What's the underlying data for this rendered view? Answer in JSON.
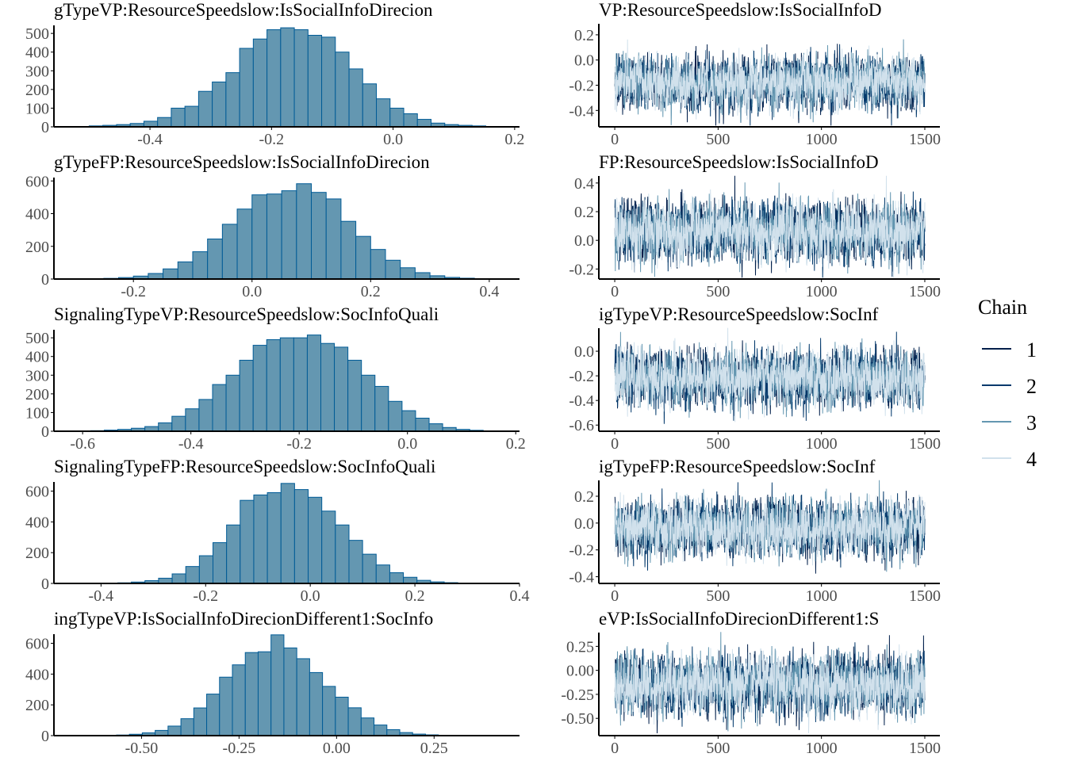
{
  "chart_data": {
    "type": "bar",
    "layout": "mcmc_combo histogram + trace",
    "legend": {
      "title": "Chain",
      "placement": "right",
      "items": [
        "1",
        "2",
        "3",
        "4"
      ]
    },
    "colors": {
      "hist_fill": "#6497b1",
      "hist_edge": "#005b96",
      "chains": [
        "#011f4b",
        "#03396c",
        "#6497b1",
        "#d1e1ec"
      ],
      "axis": "#000000",
      "tick_text": "#4d4d4d"
    },
    "panels": [
      {
        "hist": {
          "title": "gTypeVP:ResourceSpeedslow:IsSocialInfoDirecion",
          "xlim": [
            -0.558,
            0.208
          ],
          "xticks": [
            "-0.4",
            "-0.2",
            "0.0",
            "0.2"
          ],
          "xtick_values": [
            -0.4,
            -0.2,
            0.0,
            0.2
          ],
          "yticks": [
            0,
            100,
            200,
            300,
            400,
            500
          ],
          "ymax": 560,
          "bin_start": -0.5,
          "bin_width": 0.0225,
          "counts": [
            5,
            8,
            12,
            18,
            30,
            50,
            100,
            110,
            190,
            240,
            290,
            420,
            470,
            520,
            530,
            520,
            490,
            480,
            400,
            310,
            230,
            150,
            100,
            70,
            40,
            20,
            12,
            8,
            5
          ]
        },
        "trace": {
          "title": "VP:ResourceSpeedslow:IsSocialInfoD",
          "ylim": [
            -0.53,
            0.3
          ],
          "yticks": [
            "0.2",
            "0.0",
            "-0.2",
            "-0.4"
          ],
          "ytick_values": [
            0.2,
            0.0,
            -0.2,
            -0.4
          ],
          "xlim": [
            -77,
            1573
          ],
          "xticks": [
            "0",
            "500",
            "1000",
            "1500"
          ],
          "xtick_values": [
            0,
            500,
            1000,
            1500
          ],
          "iterations": 1500,
          "mean": -0.18,
          "sd": 0.1
        }
      },
      {
        "hist": {
          "title": "gTypeFP:ResourceSpeedslow:IsSocialInfoDirecion",
          "xlim": [
            -0.334,
            0.451
          ],
          "xticks": [
            "-0.2",
            "0.0",
            "0.2",
            "0.4"
          ],
          "xtick_values": [
            -0.2,
            0.0,
            0.2,
            0.4
          ],
          "yticks": [
            0,
            200,
            400,
            600
          ],
          "ymax": 640,
          "bin_start": -0.3,
          "bin_width": 0.025,
          "counts": [
            1,
            2,
            4,
            9,
            18,
            34,
            62,
            105,
            167,
            245,
            335,
            428,
            515,
            520,
            540,
            583,
            530,
            490,
            353,
            261,
            181,
            115,
            69,
            39,
            20,
            10,
            5,
            2
          ]
        },
        "trace": {
          "title": "FP:ResourceSpeedslow:IsSocialInfoD",
          "ylim": [
            -0.27,
            0.46
          ],
          "yticks": [
            "0.4",
            "0.2",
            "0.0",
            "-0.2"
          ],
          "ytick_values": [
            0.4,
            0.2,
            0.0,
            -0.2
          ],
          "xlim": [
            -77,
            1573
          ],
          "xticks": [
            "0",
            "500",
            "1000",
            "1500"
          ],
          "xtick_values": [
            0,
            500,
            1000,
            1500
          ],
          "iterations": 1500,
          "mean": 0.06,
          "sd": 0.1
        }
      },
      {
        "hist": {
          "title": "SignalingTypeVP:ResourceSpeedslow:SocInfoQuali",
          "xlim": [
            -0.653,
            0.207
          ],
          "xticks": [
            "-0.6",
            "-0.4",
            "-0.2",
            "0.0",
            "0.2"
          ],
          "xtick_values": [
            -0.6,
            -0.4,
            -0.2,
            0.0,
            0.2
          ],
          "yticks": [
            0,
            100,
            200,
            300,
            400,
            500
          ],
          "ymax": 560,
          "bin_start": -0.585,
          "bin_width": 0.025,
          "counts": [
            3,
            6,
            10,
            16,
            25,
            45,
            80,
            120,
            170,
            250,
            300,
            380,
            460,
            490,
            500,
            500,
            515,
            470,
            450,
            380,
            300,
            240,
            160,
            110,
            70,
            40,
            20,
            10,
            5
          ]
        },
        "trace": {
          "title": "igTypeVP:ResourceSpeedslow:SocInf",
          "ylim": [
            -0.65,
            0.2
          ],
          "yticks": [
            "0.0",
            "-0.2",
            "-0.4",
            "-0.6"
          ],
          "ytick_values": [
            0.0,
            -0.2,
            -0.4,
            -0.6
          ],
          "xlim": [
            -77,
            1573
          ],
          "xticks": [
            "0",
            "500",
            "1000",
            "1500"
          ],
          "xtick_values": [
            0,
            500,
            1000,
            1500
          ],
          "iterations": 1500,
          "mean": -0.22,
          "sd": 0.11
        }
      },
      {
        "hist": {
          "title": "SignalingTypeFP:ResourceSpeedslow:SocInfoQuali",
          "xlim": [
            -0.49,
            0.4
          ],
          "xticks": [
            "-0.4",
            "-0.2",
            "0.0",
            "0.2",
            "0.4"
          ],
          "xtick_values": [
            -0.4,
            -0.2,
            0.0,
            0.2,
            0.4
          ],
          "yticks": [
            0,
            200,
            400,
            600
          ],
          "ymax": 680,
          "bin_start": -0.42,
          "bin_width": 0.026,
          "counts": [
            1,
            2,
            4,
            9,
            18,
            34,
            62,
            110,
            180,
            265,
            380,
            540,
            575,
            590,
            650,
            610,
            560,
            470,
            380,
            280,
            190,
            120,
            70,
            40,
            20,
            10,
            5,
            2
          ]
        },
        "trace": {
          "title": "igTypeFP:ResourceSpeedslow:SocInf",
          "ylim": [
            -0.45,
            0.33
          ],
          "yticks": [
            "0.2",
            "0.0",
            "-0.2",
            "-0.4"
          ],
          "ytick_values": [
            0.2,
            0.0,
            -0.2,
            -0.4
          ],
          "xlim": [
            -77,
            1573
          ],
          "xticks": [
            "0",
            "500",
            "1000",
            "1500"
          ],
          "xtick_values": [
            0,
            500,
            1000,
            1500
          ],
          "iterations": 1500,
          "mean": -0.04,
          "sd": 0.1
        }
      },
      {
        "hist": {
          "title": "ingTypeVP:IsSocialInfoDirecionDifferent1:SocInfo",
          "xlim": [
            -0.7245,
            0.469
          ],
          "xticks": [
            "-0.50",
            "-0.25",
            "0.00",
            "0.25"
          ],
          "xtick_values": [
            -0.5,
            -0.25,
            0.0,
            0.25
          ],
          "yticks": [
            0,
            200,
            400,
            600
          ],
          "ymax": 680,
          "bin_start": -0.63,
          "bin_width": 0.033,
          "counts": [
            1,
            2,
            4,
            9,
            18,
            34,
            62,
            110,
            180,
            270,
            380,
            460,
            540,
            545,
            655,
            570,
            500,
            410,
            320,
            250,
            181,
            115,
            69,
            39,
            20,
            10,
            5,
            2
          ]
        },
        "trace": {
          "title": "eVP:IsSocialInfoDirecionDifferent1:S",
          "ylim": [
            -0.68,
            0.41
          ],
          "yticks": [
            "0.25",
            "0.00",
            "-0.25",
            "-0.50"
          ],
          "ytick_values": [
            0.25,
            0.0,
            -0.25,
            -0.5
          ],
          "xlim": [
            -77,
            1573
          ],
          "xticks": [
            "0",
            "500",
            "1000",
            "1500"
          ],
          "xtick_values": [
            0,
            500,
            1000,
            1500
          ],
          "iterations": 1500,
          "mean": -0.15,
          "sd": 0.15
        }
      }
    ]
  }
}
